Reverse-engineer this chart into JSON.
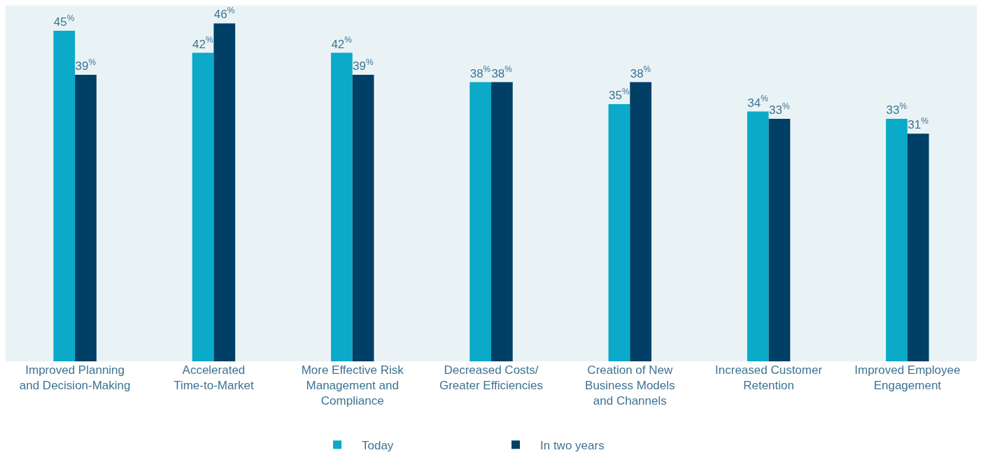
{
  "chart_data": {
    "type": "bar",
    "categories": [
      "Improved Planning\nand Decision-Making",
      "Accelerated\nTime-to-Market",
      "More Effective Risk\nManagement and\nCompliance",
      "Decreased Costs/\nGreater Efficiencies",
      "Creation of New\nBusiness Models\nand Channels",
      "Increased Customer\nRetention",
      "Improved Employee\nEngagement"
    ],
    "series": [
      {
        "name": "Today",
        "color": "#0aaac8",
        "values": [
          45,
          42,
          42,
          38,
          35,
          34,
          33
        ],
        "value_labels": [
          "45$^{%}$",
          "42$^{%}$",
          "42$^{%}$",
          "38$^{%}$",
          "35$^{%}$",
          "34$^{%}$",
          "33$^{%}$"
        ]
      },
      {
        "name": "In two years",
        "color": "#003f66",
        "values": [
          39,
          46,
          39,
          38,
          38,
          33,
          31
        ],
        "value_labels": [
          "39$^{%}$",
          "46$^{%}$",
          "39$^{%}$",
          "38$^{%}$",
          "38$^{%}$",
          "33$^{%}$",
          "31$^{%}$"
        ]
      }
    ],
    "legend": "bottom",
    "grid": false
  }
}
